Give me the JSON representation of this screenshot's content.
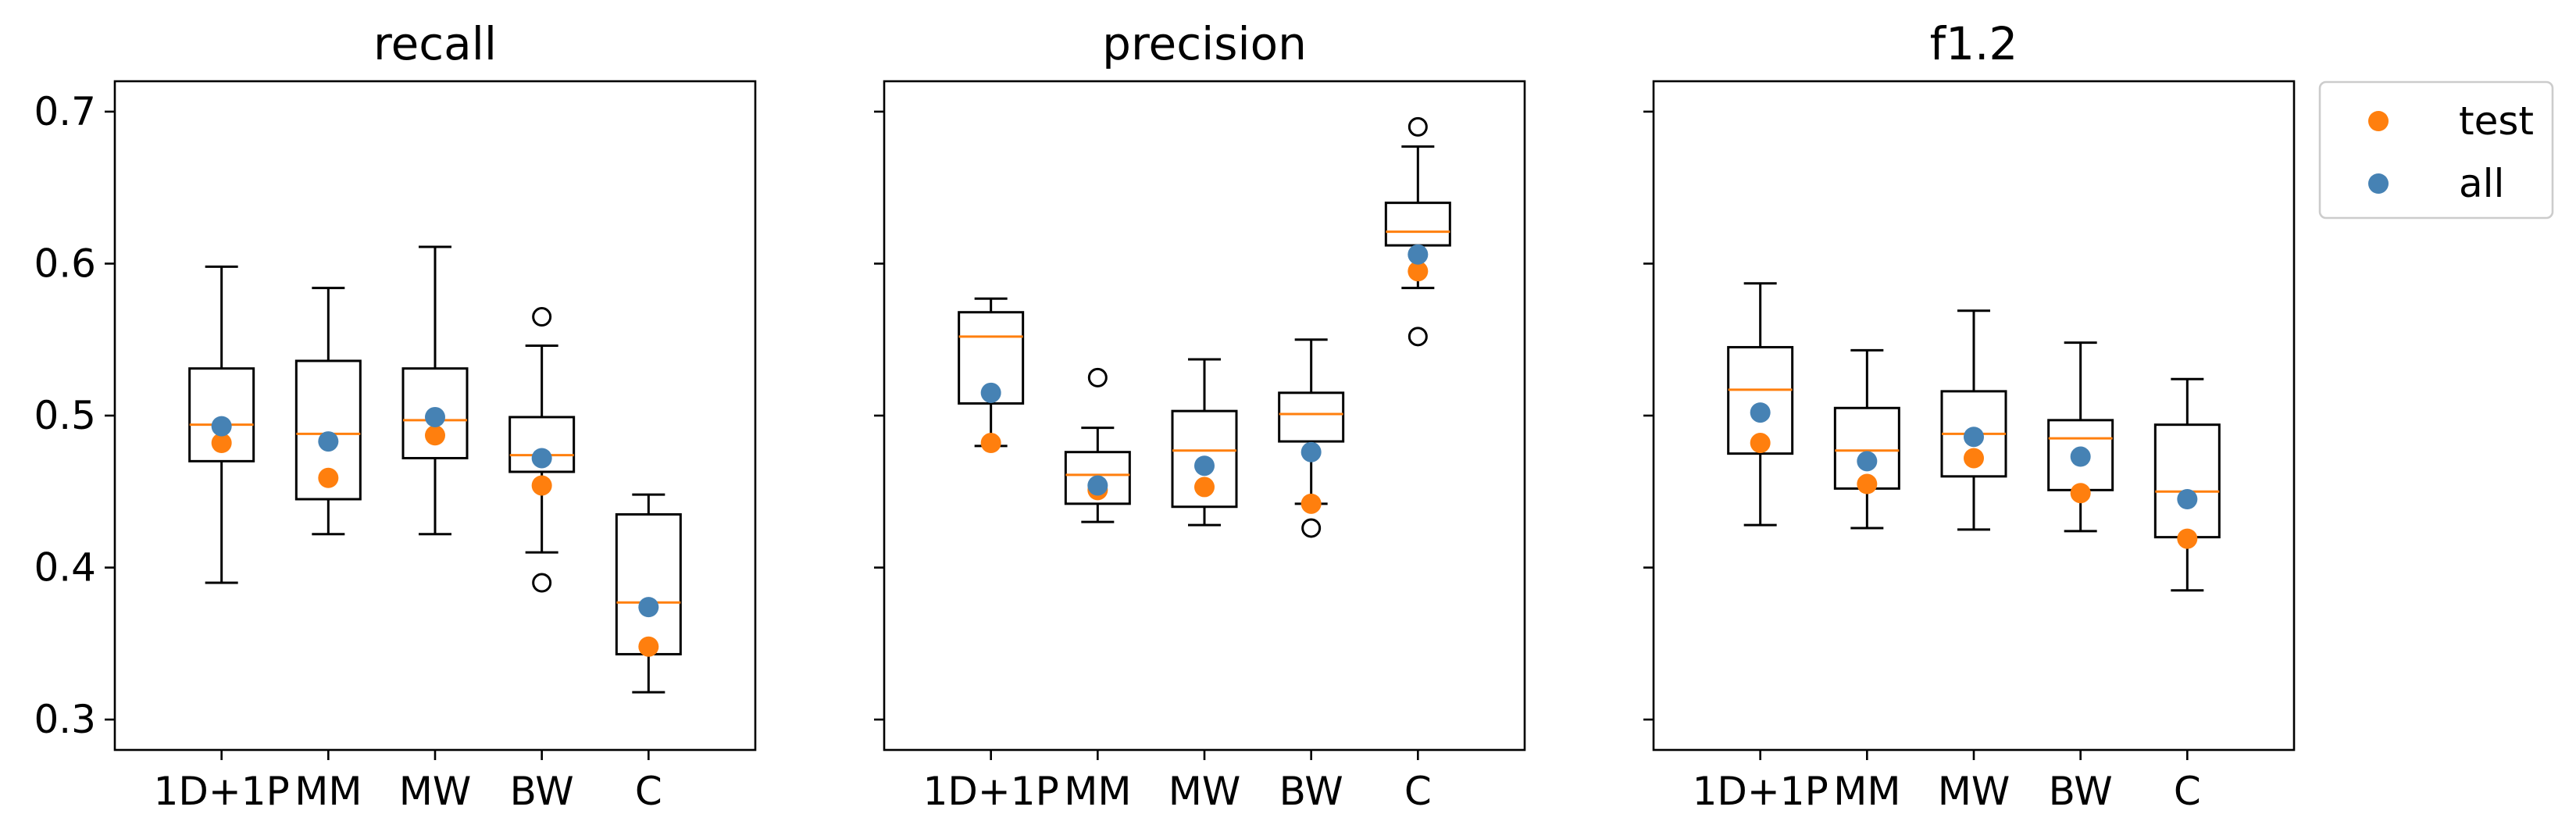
{
  "chart_data": {
    "type": "box",
    "categories": [
      "1D+1P",
      "MM",
      "MW",
      "BW",
      "C"
    ],
    "ylim": [
      0.28,
      0.72
    ],
    "yticks": [
      0.3,
      0.4,
      0.5,
      0.6,
      0.7
    ],
    "ytick_labels": [
      "0.3",
      "0.4",
      "0.5",
      "0.6",
      "0.7"
    ],
    "grid": false,
    "sharey": true,
    "legend": {
      "placement": "outside-top-right",
      "entries": [
        {
          "label": "test",
          "color": "#ff7f0e"
        },
        {
          "label": "all",
          "color": "#4682b4"
        }
      ]
    },
    "colors": {
      "box": "#000000",
      "median": "#ff7f0e",
      "test": "#ff7f0e",
      "all": "#4682b4"
    },
    "panels": [
      {
        "title": "recall",
        "boxes": [
          {
            "whisker_low": 0.39,
            "q1": 0.47,
            "median": 0.494,
            "q3": 0.531,
            "whisker_high": 0.598,
            "fliers": []
          },
          {
            "whisker_low": 0.422,
            "q1": 0.445,
            "median": 0.488,
            "q3": 0.536,
            "whisker_high": 0.584,
            "fliers": []
          },
          {
            "whisker_low": 0.422,
            "q1": 0.472,
            "median": 0.497,
            "q3": 0.531,
            "whisker_high": 0.611,
            "fliers": []
          },
          {
            "whisker_low": 0.41,
            "q1": 0.463,
            "median": 0.474,
            "q3": 0.499,
            "whisker_high": 0.546,
            "fliers": [
              0.565,
              0.39
            ]
          },
          {
            "whisker_low": 0.318,
            "q1": 0.343,
            "median": 0.377,
            "q3": 0.435,
            "whisker_high": 0.448,
            "fliers": []
          }
        ],
        "test": [
          0.482,
          0.459,
          0.487,
          0.454,
          0.348
        ],
        "all": [
          0.493,
          0.483,
          0.499,
          0.472,
          0.374
        ]
      },
      {
        "title": "precision",
        "boxes": [
          {
            "whisker_low": 0.48,
            "q1": 0.508,
            "median": 0.552,
            "q3": 0.568,
            "whisker_high": 0.577,
            "fliers": []
          },
          {
            "whisker_low": 0.43,
            "q1": 0.442,
            "median": 0.461,
            "q3": 0.476,
            "whisker_high": 0.492,
            "fliers": [
              0.525
            ]
          },
          {
            "whisker_low": 0.428,
            "q1": 0.44,
            "median": 0.477,
            "q3": 0.503,
            "whisker_high": 0.537,
            "fliers": []
          },
          {
            "whisker_low": 0.442,
            "q1": 0.483,
            "median": 0.501,
            "q3": 0.515,
            "whisker_high": 0.55,
            "fliers": [
              0.426
            ]
          },
          {
            "whisker_low": 0.584,
            "q1": 0.612,
            "median": 0.621,
            "q3": 0.64,
            "whisker_high": 0.677,
            "fliers": [
              0.69,
              0.552
            ]
          }
        ],
        "test": [
          0.482,
          0.451,
          0.453,
          0.442,
          0.595
        ],
        "all": [
          0.515,
          0.454,
          0.467,
          0.476,
          0.606
        ]
      },
      {
        "title": "f1.2",
        "boxes": [
          {
            "whisker_low": 0.428,
            "q1": 0.475,
            "median": 0.517,
            "q3": 0.545,
            "whisker_high": 0.587,
            "fliers": []
          },
          {
            "whisker_low": 0.426,
            "q1": 0.452,
            "median": 0.477,
            "q3": 0.505,
            "whisker_high": 0.543,
            "fliers": []
          },
          {
            "whisker_low": 0.425,
            "q1": 0.46,
            "median": 0.488,
            "q3": 0.516,
            "whisker_high": 0.569,
            "fliers": []
          },
          {
            "whisker_low": 0.424,
            "q1": 0.451,
            "median": 0.485,
            "q3": 0.497,
            "whisker_high": 0.548,
            "fliers": []
          },
          {
            "whisker_low": 0.385,
            "q1": 0.42,
            "median": 0.45,
            "q3": 0.494,
            "whisker_high": 0.524,
            "fliers": []
          }
        ],
        "test": [
          0.482,
          0.455,
          0.472,
          0.449,
          0.419
        ],
        "all": [
          0.502,
          0.47,
          0.486,
          0.473,
          0.445
        ]
      }
    ]
  }
}
